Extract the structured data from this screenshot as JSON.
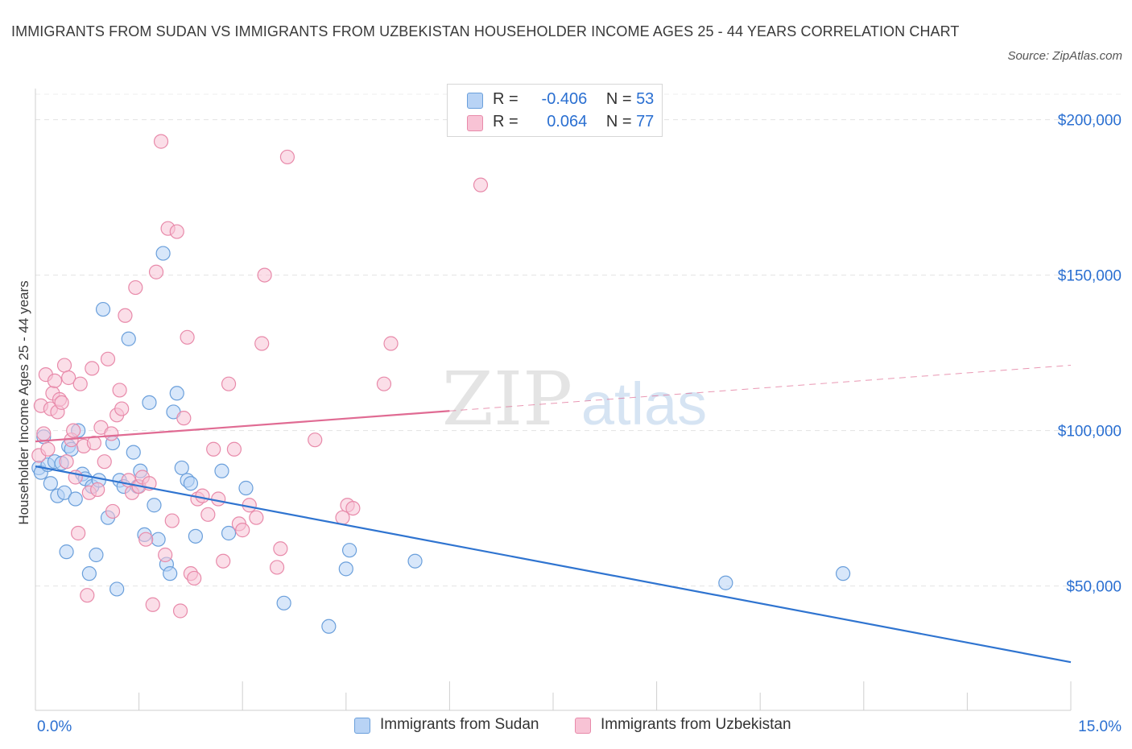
{
  "title": "IMMIGRANTS FROM SUDAN VS IMMIGRANTS FROM UZBEKISTAN HOUSEHOLDER INCOME AGES 25 - 44 YEARS CORRELATION CHART",
  "source": "Source: ZipAtlas.com",
  "watermark": {
    "zip": "ZIP",
    "atlas": "atlas"
  },
  "colors": {
    "sudan_fill": "#b8d3f5",
    "sudan_stroke": "#6a9fdb",
    "sudan_line": "#2f74d0",
    "uzbek_fill": "#f8c3d5",
    "uzbek_stroke": "#e88aaa",
    "uzbek_line": "#e06b93",
    "axis_label": "#2a6fd1"
  },
  "legend": {
    "sudan": {
      "r_label": "R =",
      "r_value": "-0.406",
      "n_label": "N =",
      "n_value": "53"
    },
    "uzbek": {
      "r_label": "R =",
      "r_value": "0.064",
      "n_label": "N =",
      "n_value": "77"
    }
  },
  "chart_data": {
    "type": "scatter",
    "ylabel": "Householder Income Ages 25 - 44 years",
    "xlim": [
      0,
      15
    ],
    "ylim": [
      10000,
      210000
    ],
    "x_tick_labels": {
      "min": "0.0%",
      "max": "15.0%"
    },
    "y_ticks": [
      {
        "value": 50000,
        "label": "$50,000"
      },
      {
        "value": 100000,
        "label": "$100,000"
      },
      {
        "value": 150000,
        "label": "$150,000"
      },
      {
        "value": 200000,
        "label": "$200,000"
      }
    ],
    "grid": "horizontal-dashed",
    "series": [
      {
        "name": "Immigrants from Sudan",
        "color": "#6a9fdb",
        "trend": {
          "x": [
            0,
            15
          ],
          "y": [
            88500,
            25500
          ],
          "solid_until": 15
        },
        "points": [
          [
            0.05,
            88000
          ],
          [
            0.08,
            86500
          ],
          [
            0.12,
            98000
          ],
          [
            0.18,
            89000
          ],
          [
            0.22,
            83000
          ],
          [
            0.28,
            90000
          ],
          [
            0.32,
            79000
          ],
          [
            0.38,
            89500
          ],
          [
            0.42,
            80000
          ],
          [
            0.48,
            95000
          ],
          [
            0.52,
            94000
          ],
          [
            0.58,
            78000
          ],
          [
            0.62,
            100000
          ],
          [
            0.68,
            86000
          ],
          [
            0.72,
            84500
          ],
          [
            0.78,
            54000
          ],
          [
            0.82,
            82000
          ],
          [
            0.88,
            60000
          ],
          [
            0.92,
            84000
          ],
          [
            0.98,
            139000
          ],
          [
            1.05,
            72000
          ],
          [
            1.12,
            96000
          ],
          [
            1.18,
            49000
          ],
          [
            1.22,
            84000
          ],
          [
            1.28,
            82000
          ],
          [
            1.35,
            129500
          ],
          [
            1.42,
            93000
          ],
          [
            1.48,
            82000
          ],
          [
            1.52,
            87000
          ],
          [
            1.58,
            66500
          ],
          [
            1.65,
            109000
          ],
          [
            1.72,
            76000
          ],
          [
            1.78,
            65000
          ],
          [
            1.85,
            157000
          ],
          [
            1.9,
            57000
          ],
          [
            1.95,
            54000
          ],
          [
            2.0,
            106000
          ],
          [
            2.05,
            112000
          ],
          [
            2.12,
            88000
          ],
          [
            2.2,
            84000
          ],
          [
            2.25,
            83000
          ],
          [
            2.32,
            66000
          ],
          [
            2.7,
            87000
          ],
          [
            2.8,
            67000
          ],
          [
            3.05,
            81500
          ],
          [
            3.6,
            44500
          ],
          [
            4.25,
            37000
          ],
          [
            4.5,
            55500
          ],
          [
            4.55,
            61500
          ],
          [
            5.5,
            58000
          ],
          [
            10.0,
            51000
          ],
          [
            11.7,
            54000
          ],
          [
            0.45,
            61000
          ]
        ]
      },
      {
        "name": "Immigrants from Uzbekistan",
        "color": "#e88aaa",
        "trend": {
          "x": [
            0,
            15
          ],
          "y": [
            96500,
            121000
          ],
          "solid_until": 6
        },
        "points": [
          [
            0.05,
            92000
          ],
          [
            0.08,
            108000
          ],
          [
            0.12,
            99000
          ],
          [
            0.15,
            118000
          ],
          [
            0.18,
            94000
          ],
          [
            0.22,
            107000
          ],
          [
            0.25,
            112000
          ],
          [
            0.28,
            116000
          ],
          [
            0.32,
            106000
          ],
          [
            0.35,
            110000
          ],
          [
            0.38,
            109000
          ],
          [
            0.42,
            121000
          ],
          [
            0.45,
            90000
          ],
          [
            0.48,
            117000
          ],
          [
            0.52,
            97000
          ],
          [
            0.55,
            100000
          ],
          [
            0.58,
            85000
          ],
          [
            0.62,
            67000
          ],
          [
            0.65,
            115000
          ],
          [
            0.7,
            95000
          ],
          [
            0.75,
            47000
          ],
          [
            0.78,
            80000
          ],
          [
            0.82,
            120000
          ],
          [
            0.85,
            96000
          ],
          [
            0.9,
            81000
          ],
          [
            0.95,
            101000
          ],
          [
            1.0,
            90000
          ],
          [
            1.05,
            123000
          ],
          [
            1.1,
            99000
          ],
          [
            1.12,
            74000
          ],
          [
            1.18,
            105000
          ],
          [
            1.22,
            113000
          ],
          [
            1.25,
            107000
          ],
          [
            1.3,
            137000
          ],
          [
            1.35,
            84000
          ],
          [
            1.4,
            80000
          ],
          [
            1.45,
            146000
          ],
          [
            1.5,
            82000
          ],
          [
            1.55,
            85000
          ],
          [
            1.6,
            65000
          ],
          [
            1.65,
            83000
          ],
          [
            1.7,
            44000
          ],
          [
            1.75,
            151000
          ],
          [
            1.82,
            193000
          ],
          [
            1.88,
            60000
          ],
          [
            1.92,
            165000
          ],
          [
            1.98,
            71000
          ],
          [
            2.05,
            164000
          ],
          [
            2.1,
            42000
          ],
          [
            2.15,
            104000
          ],
          [
            2.2,
            130000
          ],
          [
            2.25,
            54000
          ],
          [
            2.3,
            52500
          ],
          [
            2.35,
            78000
          ],
          [
            2.42,
            79000
          ],
          [
            2.5,
            73000
          ],
          [
            2.58,
            94000
          ],
          [
            2.65,
            78000
          ],
          [
            2.72,
            58000
          ],
          [
            2.8,
            115000
          ],
          [
            2.88,
            94000
          ],
          [
            2.95,
            70000
          ],
          [
            3.0,
            68000
          ],
          [
            3.1,
            76000
          ],
          [
            3.2,
            72000
          ],
          [
            3.28,
            128000
          ],
          [
            3.32,
            150000
          ],
          [
            3.5,
            56000
          ],
          [
            3.55,
            62000
          ],
          [
            3.65,
            188000
          ],
          [
            4.05,
            97000
          ],
          [
            4.45,
            72000
          ],
          [
            4.52,
            76000
          ],
          [
            4.6,
            75000
          ],
          [
            5.05,
            115000
          ],
          [
            5.15,
            128000
          ],
          [
            6.45,
            179000
          ]
        ]
      }
    ]
  },
  "bottom_legend": [
    {
      "label": "Immigrants from Sudan"
    },
    {
      "label": "Immigrants from Uzbekistan"
    }
  ]
}
